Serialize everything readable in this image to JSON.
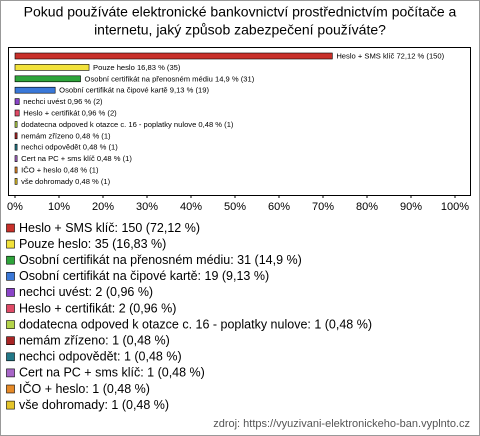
{
  "chart_data": {
    "type": "bar",
    "orientation": "horizontal",
    "title": [
      "Pokud používáte elektronické bankovnictví prostřednictvím počítače a",
      "internetu, jaký způsob zabezpečení používáte?"
    ],
    "categories": [
      "Heslo + SMS klíč",
      "Pouze heslo",
      "Osobní certifikát na přenosném médiu",
      "Osobní certifikát na čipové kartě",
      "nechci uvést",
      "Heslo + certifikát",
      "dodatecna odpoved k otazce c. 16 - poplatky nulove",
      "nemám zřízeno",
      "nechci odpovědět",
      "Cert na PC + sms klíč",
      "IČO + heslo",
      "vše dohromady"
    ],
    "values": [
      72.12,
      16.83,
      14.9,
      9.13,
      0.96,
      0.96,
      0.48,
      0.48,
      0.48,
      0.48,
      0.48,
      0.48
    ],
    "bar_labels": [
      "Heslo + SMS klíč 72,12 % (150)",
      "Pouze heslo 16,83 % (35)",
      "Osobní certifikát na přenosném médiu 14,9 % (31)",
      "Osobní certifikát na čipové kartě 9,13 % (19)",
      "nechci uvést 0,96 % (2)",
      "Heslo + certifikát 0,96 % (2)",
      "dodatecna odpoved k otazce c. 16 - poplatky nulove 0,48 % (1)",
      "nemám zřízeno 0,48 % (1)",
      "nechci odpovědět 0,48 % (1)",
      "Cert na PC + sms klíč 0,48 % (1)",
      "IČO + heslo 0,48 % (1)",
      "vše dohromady 0,48 % (1)"
    ],
    "legend_labels": [
      "Heslo + SMS klíč: 150 (72,12 %)",
      "Pouze heslo: 35 (16,83 %)",
      "Osobní certifikát na přenosném médiu: 31 (14,9 %)",
      "Osobní certifikát na čipové kartě: 19 (9,13 %)",
      "nechci uvést: 2 (0,96 %)",
      "Heslo + certifikát: 2 (0,96 %)",
      "dodatecna odpoved k otazce c. 16 - poplatky nulove: 1 (0,48 %)",
      "nemám zřízeno: 1 (0,48 %)",
      "nechci odpovědět: 1 (0,48 %)",
      "Cert na PC + sms klíč: 1 (0,48 %)",
      "IČO + heslo: 1 (0,48 %)",
      "vše dohromady: 1 (0,48 %)"
    ],
    "colors": [
      "#c8302a",
      "#f2e23a",
      "#2ea43a",
      "#3a78d8",
      "#8a44c8",
      "#e04a66",
      "#b4d44a",
      "#a82424",
      "#227888",
      "#a866c8",
      "#e68a28",
      "#e4c42a"
    ],
    "xlim": [
      0,
      100
    ],
    "xticks": [
      {
        "value": 0,
        "label": "0%"
      },
      {
        "value": 10,
        "label": "10%"
      },
      {
        "value": 20,
        "label": "20%"
      },
      {
        "value": 30,
        "label": "30%"
      },
      {
        "value": 40,
        "label": "40%"
      },
      {
        "value": 50,
        "label": "50%"
      },
      {
        "value": 60,
        "label": "60%"
      },
      {
        "value": 70,
        "label": "70%"
      },
      {
        "value": 80,
        "label": "80%"
      },
      {
        "value": 90,
        "label": "90%"
      },
      {
        "value": 100,
        "label": "100%"
      }
    ],
    "source": "zdroj: https://vyuzivani-elektronickeho-ban.vyplnto.cz"
  }
}
